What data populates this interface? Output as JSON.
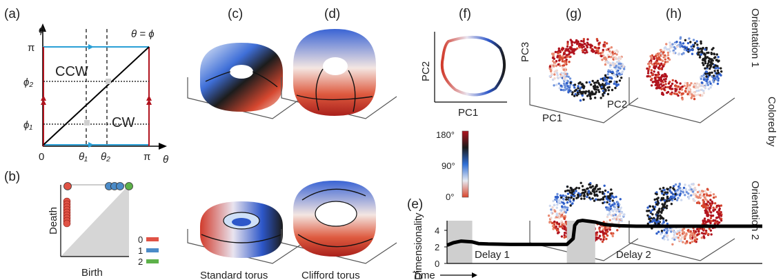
{
  "panel_labels": {
    "a": "(a)",
    "b": "(b)",
    "c": "(c)",
    "d": "(d)",
    "e": "(e)",
    "f": "(f)",
    "g": "(g)",
    "h": "(h)"
  },
  "panel_a": {
    "phi": "ϕ",
    "theta": "θ",
    "pi_y": "π",
    "pi_x": "π",
    "zero": "0",
    "phi2": "ϕ₂",
    "phi1": "ϕ₁",
    "theta1": "θ₁",
    "theta2": "θ₂",
    "diag": "θ = ϕ",
    "ccw": "CCW",
    "cw": "CW",
    "colors": {
      "blue": "#2a9fd6",
      "red": "#b0131e"
    }
  },
  "panel_b": {
    "death": "Death",
    "birth": "Birth",
    "legend": [
      {
        "label": "0",
        "color": "#e05245"
      },
      {
        "label": "1",
        "color": "#4b8bc8"
      },
      {
        "label": "2",
        "color": "#5db14a"
      }
    ]
  },
  "panel_cd": {
    "standard": "Standard torus",
    "clifford": "Clifford torus"
  },
  "panel_f": {
    "pc1": "PC1",
    "pc2": "PC2"
  },
  "panel_g": {
    "pc1": "PC1",
    "pc2": "PC2",
    "pc3": "PC3"
  },
  "colorbar": {
    "ticks": [
      "180°",
      "90°",
      "0°"
    ]
  },
  "side_labels": {
    "colored_by": "Colored by",
    "orientation1": "Orientation 1",
    "orientation2": "Orientation 2"
  },
  "chart_data": {
    "type": "line",
    "ylabel": "Dimensionality",
    "xlabel": "Time",
    "ylim": [
      0,
      6
    ],
    "yticks": [
      0,
      2,
      4
    ],
    "x": [
      0,
      0.02,
      0.045,
      0.08,
      0.1,
      0.13,
      0.2,
      0.3,
      0.38,
      0.4,
      0.405,
      0.415,
      0.43,
      0.47,
      0.5,
      0.55,
      0.6,
      0.7,
      1.0
    ],
    "values": [
      2.2,
      2.5,
      2.7,
      2.6,
      2.4,
      2.35,
      2.3,
      2.3,
      2.3,
      3.0,
      4.6,
      5.1,
      5.2,
      5.0,
      4.7,
      4.55,
      4.5,
      4.5,
      4.5
    ],
    "shaded_regions": [
      [
        0,
        0.08
      ],
      [
        0.38,
        0.47
      ]
    ],
    "annotations": [
      {
        "text": "Delay 1",
        "color": "#2fae4b"
      },
      {
        "text": "Delay 2",
        "color": "#2aa8d6"
      }
    ]
  }
}
